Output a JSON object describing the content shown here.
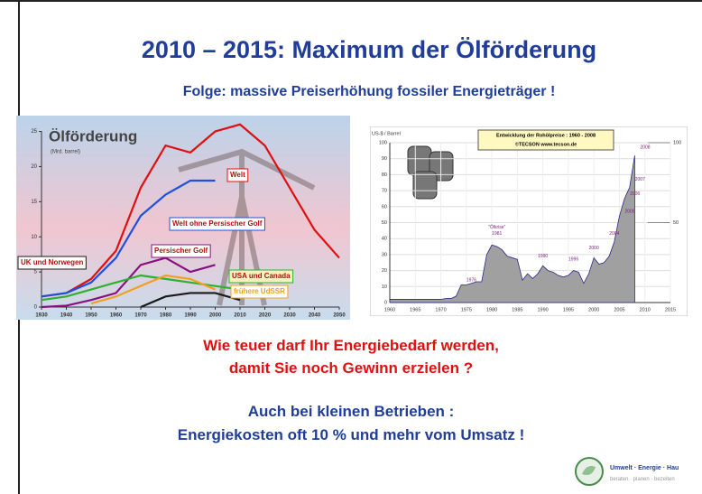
{
  "slide": {
    "title": "2010 – 2015: Maximum der Ölförderung",
    "subtitle": "Folge:  massive Preiserhöhung fossiler Energieträger !",
    "question": [
      "Wie teuer darf Ihr Energiebedarf werden,",
      "damit Sie noch Gewinn erzielen ?"
    ],
    "note": [
      "Auch bei kleinen Betrieben :",
      "Energiekosten oft 10 % und mehr vom Umsatz !"
    ],
    "logo": {
      "name": "Umwelt · Energie · Hau",
      "tagline": "beraten · planen · bezeiten"
    }
  },
  "left_chart": {
    "type": "line",
    "title": "Ölförderung",
    "unit": "(Mrd. barrel)",
    "x": [
      1930,
      1940,
      1950,
      1960,
      1970,
      1980,
      1990,
      2000,
      2010,
      2020,
      2030,
      2040,
      2050
    ],
    "series": [
      {
        "name": "Welt",
        "color": "#e01010",
        "values": [
          1.5,
          2,
          4,
          8,
          17,
          23,
          22,
          25,
          26,
          23,
          17,
          11,
          7
        ]
      },
      {
        "name": "Welt ohne Persischer Golf",
        "color": "#2050e0",
        "values": [
          1.5,
          2,
          3.5,
          7,
          13,
          16,
          18,
          18,
          null,
          null,
          null,
          null,
          null
        ]
      },
      {
        "name": "Persischer Golf",
        "color": "#8a1080",
        "values": [
          0,
          0.2,
          1,
          2,
          6,
          7,
          5,
          6,
          null,
          null,
          null,
          null,
          null
        ]
      },
      {
        "name": "UK und Norwegen",
        "color": "#1a1a1a",
        "values": [
          null,
          null,
          null,
          null,
          0,
          1.5,
          2,
          2,
          1,
          null,
          null,
          null,
          null
        ]
      },
      {
        "name": "USA und Canada",
        "color": "#30b030",
        "values": [
          1,
          1.5,
          2.5,
          3.5,
          4.5,
          4,
          3.5,
          3,
          2.5,
          null,
          null,
          null,
          null
        ]
      },
      {
        "name": "frühere UdSSR",
        "color": "#f0a020",
        "values": [
          null,
          null,
          0.5,
          1.5,
          3,
          4.5,
          4,
          2.5,
          null,
          null,
          null,
          null,
          null
        ]
      }
    ],
    "xlim": [
      1930,
      2050
    ],
    "ylim": [
      0,
      27
    ],
    "xticks": [
      1930,
      1940,
      1950,
      1960,
      1970,
      1980,
      1990,
      2000,
      2010,
      2020,
      2030,
      2040,
      2050
    ],
    "yticks": [
      0,
      5,
      10,
      15,
      20,
      25
    ]
  },
  "right_chart": {
    "type": "area",
    "title": "Entwicklung der Rohölpreise : 1960 - 2008",
    "source": "©TECSON     www.tecson.de",
    "y_label": "US-$ / Barrel",
    "color": "#a0a0a0",
    "x": [
      1960,
      1961,
      1962,
      1963,
      1964,
      1965,
      1966,
      1967,
      1968,
      1969,
      1970,
      1971,
      1972,
      1973,
      1974,
      1975,
      1976,
      1977,
      1978,
      1979,
      1980,
      1981,
      1982,
      1983,
      1984,
      1985,
      1986,
      1987,
      1988,
      1989,
      1990,
      1991,
      1992,
      1993,
      1994,
      1995,
      1996,
      1997,
      1998,
      1999,
      2000,
      2001,
      2002,
      2003,
      2004,
      2005,
      2006,
      2007,
      2008
    ],
    "values": [
      2,
      2,
      2,
      2,
      2,
      2,
      2,
      2,
      2,
      2,
      2,
      2.5,
      2.5,
      4,
      11,
      11,
      12,
      13,
      13,
      30,
      36,
      35,
      33,
      29,
      28,
      27,
      14,
      18,
      15,
      18,
      23,
      20,
      19,
      17,
      16,
      17,
      20,
      19,
      12,
      18,
      28,
      24,
      25,
      29,
      38,
      54,
      65,
      72,
      92
    ],
    "xlim": [
      1960,
      2015
    ],
    "ylim": [
      0,
      100
    ],
    "xticks": [
      1960,
      1965,
      1970,
      1975,
      1980,
      1985,
      1990,
      1995,
      2000,
      2005,
      2010,
      2015
    ],
    "yticks": [
      0,
      10,
      20,
      30,
      40,
      50,
      60,
      70,
      80,
      90,
      100
    ],
    "y2ticks": [
      50,
      100
    ],
    "annotations": [
      "1976",
      "\"Ölkrise\"",
      "1981",
      "1990",
      "1996",
      "2000",
      "2004",
      "2005",
      "2006",
      "2007",
      "2008"
    ]
  }
}
